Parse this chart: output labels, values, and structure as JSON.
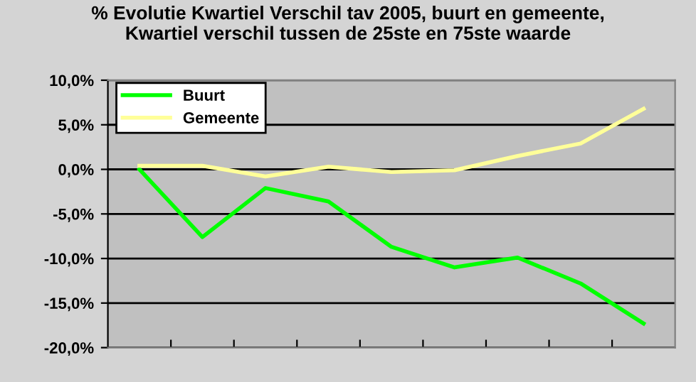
{
  "chart_data": {
    "type": "line",
    "title": "% Evolutie Kwartiel Verschil tav 2005, buurt en gemeente,\nKwartiel verschil tussen de 25ste en 75ste waarde",
    "categories": [
      null,
      null,
      null,
      null,
      null,
      null,
      null,
      null,
      null
    ],
    "series": [
      {
        "name": "Buurt",
        "color": "#00ff00",
        "values": [
          0.0,
          -7.6,
          -2.1,
          -3.6,
          -8.7,
          -11.0,
          -9.9,
          -12.8,
          -17.3
        ]
      },
      {
        "name": "Gemeente",
        "color": "#ffff99",
        "values": [
          0.4,
          0.4,
          -0.8,
          0.3,
          -0.3,
          -0.1,
          1.5,
          2.9,
          6.8
        ]
      }
    ],
    "ylim": [
      -20,
      10
    ],
    "yticks": [
      {
        "value": -20,
        "label": "-20,0%"
      },
      {
        "value": -15,
        "label": "-15,0%"
      },
      {
        "value": -10,
        "label": "-10,0%"
      },
      {
        "value": -5,
        "label": "-5,0%"
      },
      {
        "value": 0,
        "label": "0,0%"
      },
      {
        "value": 5,
        "label": "5,0%"
      },
      {
        "value": 10,
        "label": "10,0%"
      }
    ],
    "grid": "y",
    "legend": "top left",
    "marker": "none",
    "line_style": "solid"
  }
}
